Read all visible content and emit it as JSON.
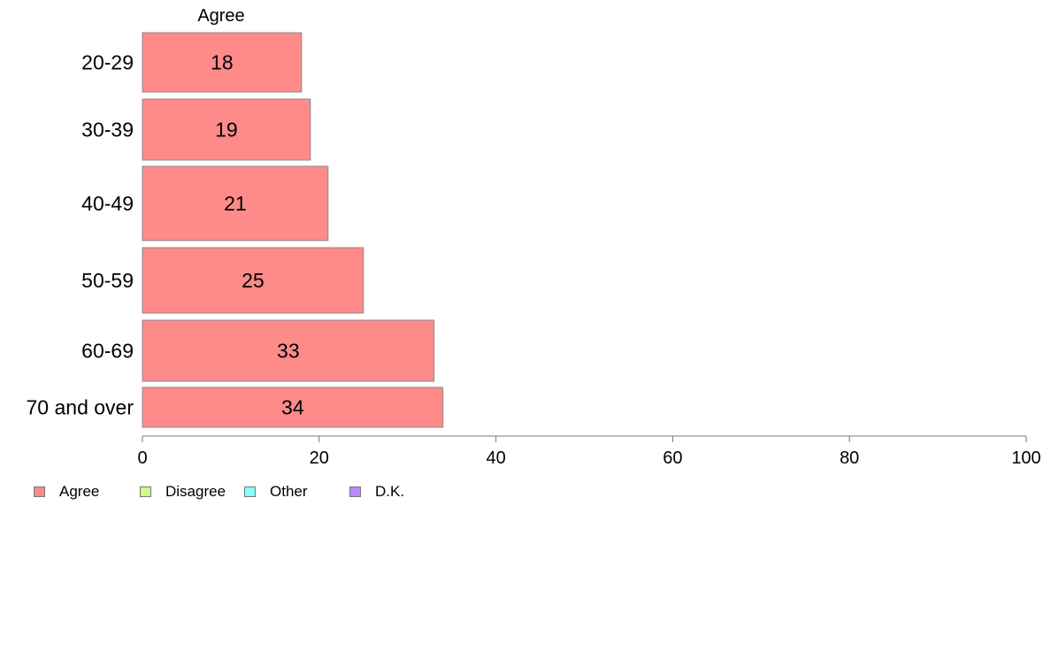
{
  "chart_data": {
    "type": "bar",
    "orientation": "horizontal",
    "title": "Agree",
    "categories": [
      "20-29",
      "30-39",
      "40-49",
      "50-59",
      "60-69",
      "70 and over"
    ],
    "series": [
      {
        "name": "Agree",
        "values": [
          18,
          19,
          21,
          25,
          33,
          34
        ],
        "color": "#ff8a8a"
      }
    ],
    "value_labels": [
      "18",
      "19",
      "21",
      "25",
      "33",
      "34"
    ],
    "xlim": [
      0,
      100
    ],
    "xticks": [
      0,
      20,
      40,
      60,
      80,
      100
    ],
    "xtick_labels": [
      "0",
      "20",
      "40",
      "60",
      "80",
      "100"
    ],
    "grid": false,
    "legend": {
      "position": "bottom-left",
      "entries": [
        {
          "label": "Agree",
          "color": "#ff8a8a"
        },
        {
          "label": "Disagree",
          "color": "#ccff88"
        },
        {
          "label": "Other",
          "color": "#88ffff"
        },
        {
          "label": "D.K.",
          "color": "#bb88ff"
        }
      ]
    }
  }
}
